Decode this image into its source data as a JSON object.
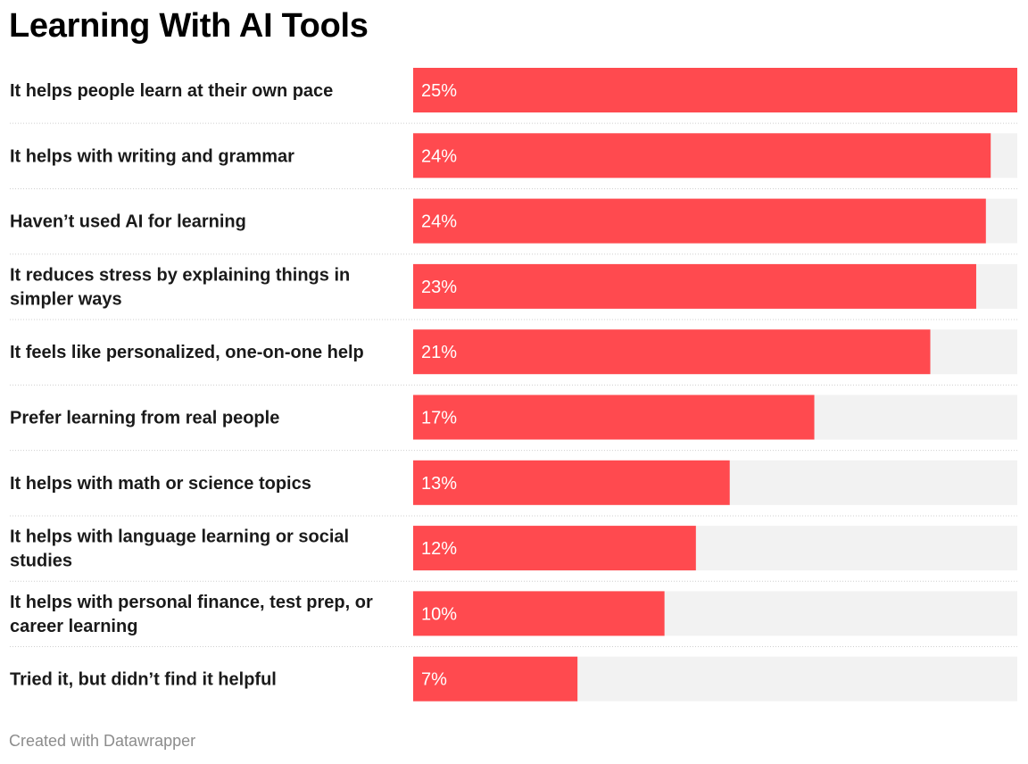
{
  "title": "Learning With AI Tools",
  "footer": "Created with Datawrapper",
  "colors": {
    "bar": "#ff4a4f",
    "track": "#f2f2f2",
    "separator": "#cfcfcf",
    "value_text": "#ffffff"
  },
  "chart_data": {
    "type": "bar",
    "orientation": "horizontal",
    "title": "Learning With AI Tools",
    "xlim": [
      0,
      25
    ],
    "grid": false,
    "categories": [
      "It helps people learn at their own pace",
      "It helps with writing and grammar",
      "Haven’t used AI for learning",
      "It reduces stress by explaining things in simpler ways",
      "It feels like personalized, one-on-one help",
      "Prefer learning from real people",
      "It helps with math or science topics",
      "It helps with language learning or social studies",
      "It helps with personal finance, test prep, or career learning",
      "Tried it, but didn’t find it helpful"
    ],
    "label_lines": [
      [
        "It helps people learn at their own pace"
      ],
      [
        "It helps with writing and grammar"
      ],
      [
        "Haven’t used AI for learning"
      ],
      [
        "It reduces stress by explaining things in",
        "simpler ways"
      ],
      [
        "It feels like personalized, one-on-one help"
      ],
      [
        "Prefer learning from real people"
      ],
      [
        "It helps with math or science topics"
      ],
      [
        "It helps with language learning or social",
        "studies"
      ],
      [
        "It helps with personal finance, test prep, or",
        "career learning"
      ],
      [
        "Tried it, but didn’t find it helpful"
      ]
    ],
    "values": [
      25,
      23.9,
      23.7,
      23.3,
      21.4,
      16.6,
      13.1,
      11.7,
      10.4,
      6.8
    ],
    "value_labels": [
      "25%",
      "24%",
      "24%",
      "23%",
      "21%",
      "17%",
      "13%",
      "12%",
      "10%",
      "7%"
    ]
  }
}
